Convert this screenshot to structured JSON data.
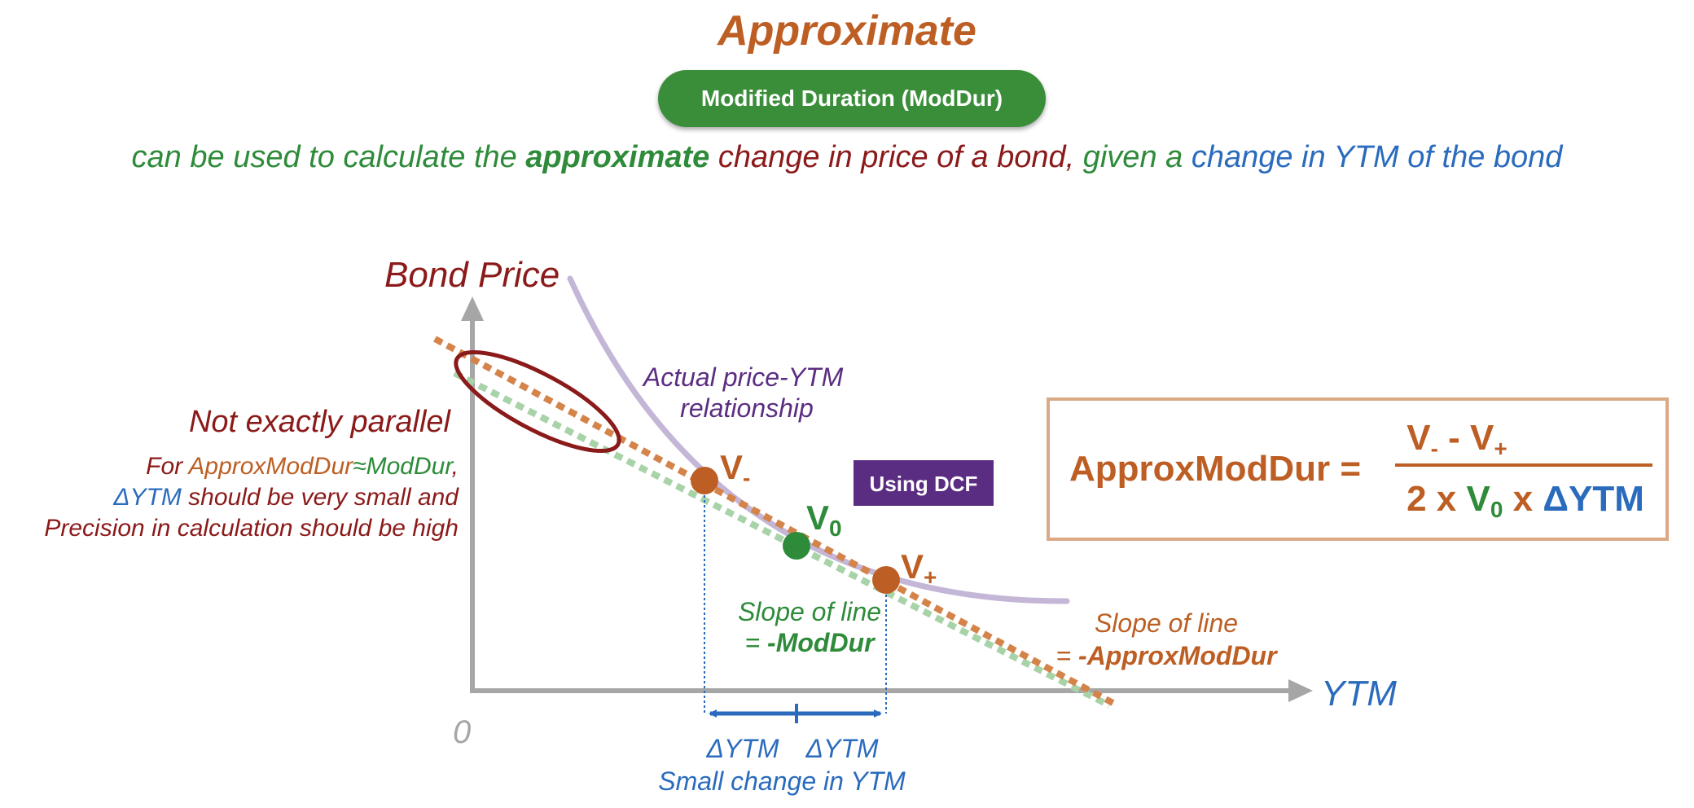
{
  "title": "Approximate",
  "pill_label": "Modified Duration (ModDur)",
  "subtitle": {
    "p1": "can be used to calculate the ",
    "p2": "approximate",
    "p3": " change in price of a bond,",
    "p4": " given a ",
    "p5": "change in YTM of the bond"
  },
  "axes": {
    "y_label": "Bond Price",
    "x_label": "YTM",
    "origin": "0"
  },
  "curve_label": [
    "Actual price-YTM",
    "relationship"
  ],
  "not_parallel": "Not exactly parallel",
  "note": {
    "for": "For ",
    "approx": "ApproxModDur",
    "approx_sym": "≈",
    "moddur": "ModDur",
    "comma": ",",
    "dytm": "ΔYTM",
    "line2_rest": " should be very small and",
    "line3": "Precision in calculation should be high"
  },
  "points": {
    "v_minus": {
      "base": "V",
      "sub": "-"
    },
    "v_zero": {
      "base": "V",
      "sub": "0"
    },
    "v_plus": {
      "base": "V",
      "sub": "+"
    }
  },
  "using_dcf": "Using DCF",
  "slope_green": {
    "line1": "Slope of line",
    "eq": "= ",
    "val": "-ModDur"
  },
  "slope_orange": {
    "line1": "Slope of line",
    "eq": "= ",
    "val": "-ApproxModDur"
  },
  "delta_left": "ΔYTM",
  "delta_right": "ΔYTM",
  "small_change": "Small change in YTM",
  "formula": {
    "lhs": "ApproxModDur =",
    "num_v1": "V",
    "num_sub1": "-",
    "num_minus": " - ",
    "num_v2": "V",
    "num_sub2": "+",
    "den_2x": "2 x ",
    "den_v0": "V",
    "den_sub0": "0",
    "den_x": " x ",
    "den_dytm": "ΔYTM"
  },
  "colors": {
    "orange": "#bd5f24",
    "green": "#2e8b3a",
    "blue": "#2a6bbd",
    "dark_red": "#8b1a1a",
    "purple": "#5b2d82",
    "curve": "#c4b6d6",
    "axis": "#a6a6a6"
  }
}
